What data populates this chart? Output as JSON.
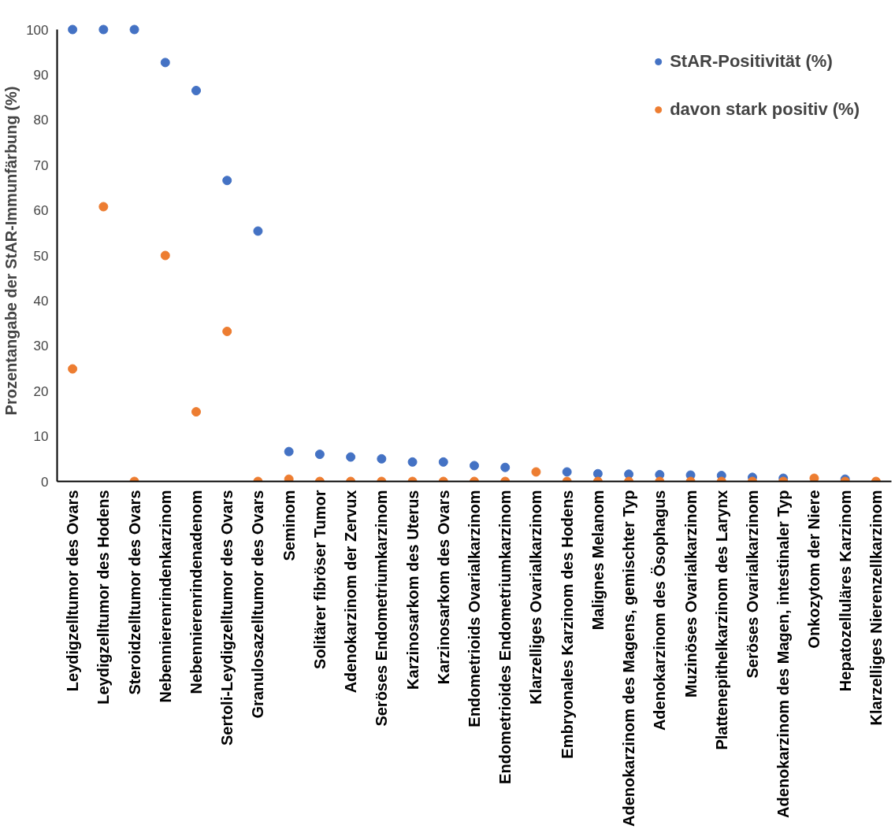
{
  "chart_data": {
    "type": "scatter",
    "ylabel": "Prozentangabe der StAR-Immunfärbung (%)",
    "categories": [
      "Leydigzelltumor des Ovars",
      "Leydigzelltumor des Hodens",
      "Steroidzelltumor des Ovars",
      "Nebennierenrindenkarzinom",
      "Nebennierenrindenadenom",
      "Sertoli-Leydigzelltumor des Ovars",
      "Granulosazelltumor des Ovars",
      "Seminom",
      "Solitärer fibröser Tumor",
      "Adenokarzinom der Zervux",
      "Seröses Endometriumkarzinom",
      "Karzinosarkom des Uterus",
      "Karzinosarkom des Ovars",
      "Endometrioids Ovarialkarzinom",
      "Endometrioides Endometriumkarzinom",
      "Klarzelliges Ovarialkarzinom",
      "Embryonales Karzinom des Hodens",
      "Malignes Melanom",
      "Adenokarzinom des Magens, gemischter Typ",
      "Adenokarzinom des Ösophagus",
      "Muzinöses Ovarialkarzinom",
      "Plattenepithelkarzinom des Larynx",
      "Seröses Ovarialkarzinom",
      "Adenokarzinom des Magen, intestinaler Typ",
      "Onkozytom der Niere",
      "Hepatozelluläres Karzinom",
      "Klarzelliges Nierenzellkarzinom"
    ],
    "series": [
      {
        "name": "StAR-Positivität (%)",
        "color": "#4472c4",
        "values": [
          100,
          100,
          100,
          92.7,
          86.5,
          66.6,
          55.4,
          6.6,
          6.0,
          5.4,
          5.0,
          4.3,
          4.3,
          3.5,
          3.1,
          null,
          2.1,
          1.7,
          1.6,
          1.5,
          1.4,
          1.3,
          0.9,
          0.7,
          null,
          0.5,
          null
        ]
      },
      {
        "name": "davon stark positiv (%)",
        "color": "#ed7d31",
        "values": [
          24.9,
          60.8,
          0,
          50.0,
          15.4,
          33.2,
          0,
          0.5,
          0,
          0,
          0,
          0,
          0,
          0,
          0,
          2.1,
          0,
          0,
          0,
          0,
          0,
          0,
          0,
          0,
          0.7,
          0,
          0
        ]
      }
    ],
    "ylim": [
      0,
      100
    ],
    "yticks": [
      0,
      10,
      20,
      30,
      40,
      50,
      60,
      70,
      80,
      90,
      100
    ],
    "marker": "circle",
    "legend": "top right",
    "grid": false
  }
}
